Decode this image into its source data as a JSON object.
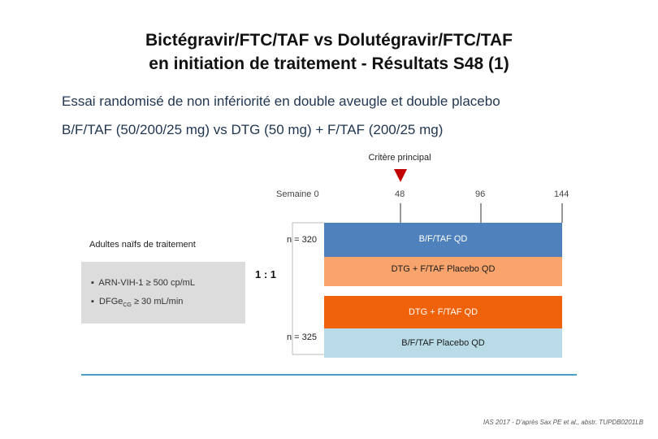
{
  "title": {
    "line1": "Bictégravir/FTC/TAF vs Dolutégravir/FTC/TAF",
    "line2": "en initiation de traitement - Résultats S48 (1)"
  },
  "subtitle1": "Essai randomisé de non infériorité en double aveugle et double placebo",
  "subtitle2": "B/F/TAF (50/200/25 mg) vs DTG (50 mg) + F/TAF (200/25 mg)",
  "primary_endpoint": "Critère principal",
  "timeline": {
    "week0": "Semaine 0",
    "week48": "48",
    "week96": "96",
    "week144": "144"
  },
  "population": {
    "label": "Adultes naïfs de traitement",
    "criteria": [
      "ARN-VIH-1 ≥ 500 cp/mL",
      "DFGe",
      "≥ 30 mL/min"
    ],
    "criteria_sub": "CG"
  },
  "randomization": "1 : 1",
  "arms": {
    "n1": "n = 320",
    "n2": "n = 325",
    "bars": [
      {
        "label": "B/F/TAF QD",
        "color": "#4f81bd",
        "text_color": "#ffffff"
      },
      {
        "label": "DTG + F/TAF Placebo QD",
        "color": "#f9a46c",
        "text_color": "#1a1a1a"
      },
      {
        "label": "DTG + F/TAF QD",
        "color": "#f0620a",
        "text_color": "#ffffff"
      },
      {
        "label": "B/F/TAF Placebo QD",
        "color": "#b9dbe7",
        "text_color": "#1a1a1a"
      }
    ]
  },
  "colors": {
    "marker": "#c00000",
    "baseline": "#4b9fc9"
  },
  "footnote": "IAS 2017 - D’après Sax PE et al., abstr. TUPDB0201LB"
}
